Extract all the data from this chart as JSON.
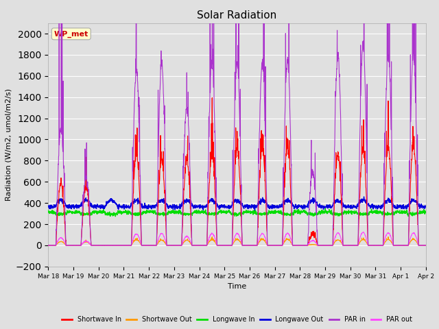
{
  "title": "Solar Radiation",
  "ylabel": "Radiation (W/m2, umol/m2/s)",
  "xlabel": "Time",
  "ylim": [
    -200,
    2100
  ],
  "yticks": [
    -200,
    0,
    200,
    400,
    600,
    800,
    1000,
    1200,
    1400,
    1600,
    1800,
    2000
  ],
  "bg_color": "#e0e0e0",
  "plot_bg_color": "#e0e0e0",
  "grid_color": "#ffffff",
  "legend_labels": [
    "Shortwave In",
    "Shortwave Out",
    "Longwave In",
    "Longwave Out",
    "PAR in",
    "PAR out"
  ],
  "legend_colors": [
    "#ff0000",
    "#ff9900",
    "#00dd00",
    "#0000dd",
    "#aa33cc",
    "#ff44ff"
  ],
  "annotation_text": "WP_met",
  "annotation_color": "#cc0000",
  "annotation_bg": "#ffffcc",
  "n_days": 15,
  "pts_per_day": 144,
  "sw_peaks": [
    580,
    550,
    0,
    860,
    800,
    800,
    860,
    900,
    900,
    920,
    100,
    860,
    900,
    920,
    940
  ],
  "par_peaks": [
    1100,
    620,
    0,
    1650,
    1720,
    1300,
    1720,
    1720,
    1720,
    1750,
    700,
    1800,
    1900,
    1800,
    1800
  ],
  "lw_in_base": 315,
  "lw_out_base": 365,
  "tick_labels": [
    "Mar 18",
    "Mar 19",
    "Mar 20",
    "Mar 21",
    "Mar 22",
    "Mar 23",
    "Mar 24",
    "Mar 25",
    "Mar 26",
    "Mar 27",
    "Mar 28",
    "Mar 29",
    "Mar 30",
    "Mar 31",
    "Apr 1",
    "Apr 2"
  ]
}
